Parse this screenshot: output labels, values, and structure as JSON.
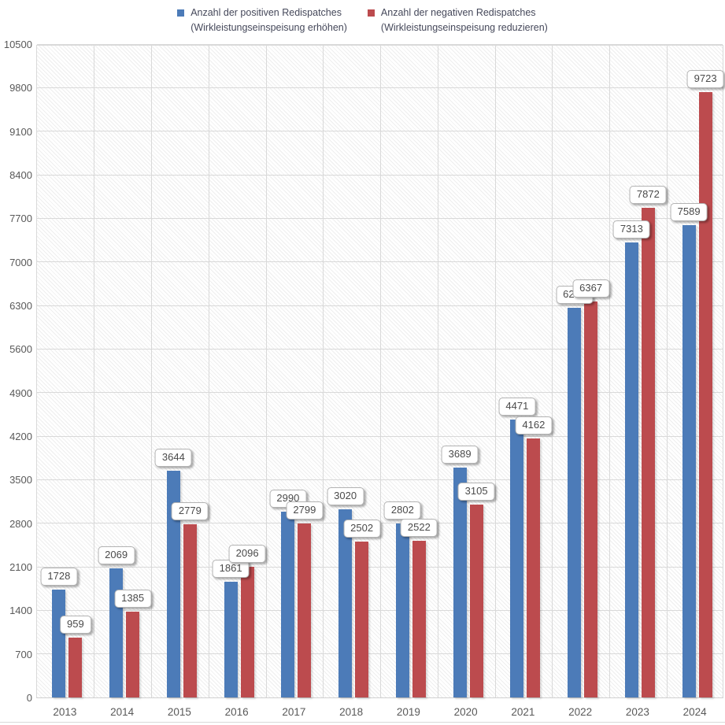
{
  "legend": {
    "items": [
      {
        "line1": "Anzahl der positiven Redispatches",
        "line2": "(Wirkleistungseinspeisung erhöhen)",
        "color": "#4c7bb8"
      },
      {
        "line1": "Anzahl der negativen Redispatches",
        "line2": "(Wirkleistungseinspeisung reduzieren)",
        "color": "#bc4b4e"
      }
    ]
  },
  "chart_data": {
    "type": "bar",
    "title": "",
    "xlabel": "",
    "ylabel": "",
    "categories": [
      "2013",
      "2014",
      "2015",
      "2016",
      "2017",
      "2018",
      "2019",
      "2020",
      "2021",
      "2022",
      "2023",
      "2024"
    ],
    "series": [
      {
        "name": "Anzahl der positiven Redispatches (Wirkleistungseinspeisung erhöhen)",
        "color": "#4c7bb8",
        "values": [
          1728,
          2069,
          3644,
          1861,
          2990,
          3020,
          2802,
          3689,
          4471,
          6258,
          7313,
          7589
        ]
      },
      {
        "name": "Anzahl der negativen Redispatches (Wirkleistungseinspeisung reduzieren)",
        "color": "#bc4b4e",
        "values": [
          959,
          1385,
          2779,
          2096,
          2799,
          2502,
          2522,
          3105,
          4162,
          6367,
          7872,
          9723
        ]
      }
    ],
    "data_labels": true,
    "y_ticks": [
      0,
      700,
      1400,
      2100,
      2800,
      3500,
      4200,
      4900,
      5600,
      6300,
      7000,
      7700,
      8400,
      9100,
      9800,
      10500
    ],
    "ylim": [
      0,
      10500
    ],
    "grid": true,
    "legend_position": "top",
    "plot_background": "diagonal-hatch"
  },
  "colors": {
    "positive_series": "#4c7bb8",
    "negative_series": "#bc4b4e",
    "gridline": "#d9d9d9",
    "axis_text": "#595959",
    "label_text": "#4a4a4a",
    "label_border": "#b3b3b3"
  }
}
